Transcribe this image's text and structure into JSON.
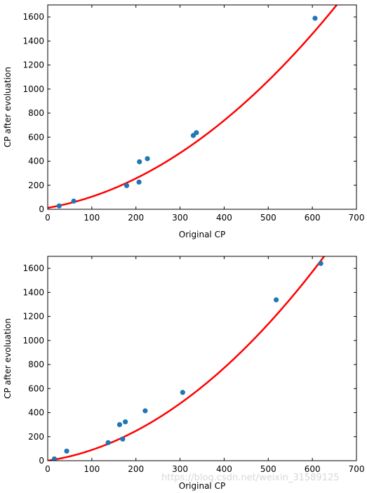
{
  "chart_data": [
    {
      "type": "scatter",
      "title": "",
      "xlabel": "Original CP",
      "ylabel": "CP after evoluation",
      "xlim": [
        0,
        700
      ],
      "ylim": [
        0,
        1700
      ],
      "xticks": [
        0,
        100,
        200,
        300,
        400,
        500,
        600,
        700
      ],
      "yticks": [
        0,
        200,
        400,
        600,
        800,
        1000,
        1200,
        1400,
        1600
      ],
      "grid": false,
      "series": [
        {
          "kind": "scatter",
          "color": "#1f77b4",
          "points": [
            {
              "x": 26,
              "y": 28
            },
            {
              "x": 59,
              "y": 68
            },
            {
              "x": 179,
              "y": 197
            },
            {
              "x": 207,
              "y": 226
            },
            {
              "x": 208,
              "y": 395
            },
            {
              "x": 226,
              "y": 421
            },
            {
              "x": 330,
              "y": 614
            },
            {
              "x": 337,
              "y": 637
            },
            {
              "x": 606,
              "y": 1589
            }
          ]
        },
        {
          "kind": "line",
          "color": "#ff0000",
          "fit_coefficients": [
            12,
            0.63,
            0.00297
          ]
        }
      ]
    },
    {
      "type": "scatter",
      "title": "",
      "xlabel": "Original CP",
      "ylabel": "CP after evoluation",
      "xlim": [
        0,
        700
      ],
      "ylim": [
        0,
        1700
      ],
      "xticks": [
        0,
        100,
        200,
        300,
        400,
        500,
        600,
        700
      ],
      "yticks": [
        0,
        200,
        400,
        600,
        800,
        1000,
        1200,
        1400,
        1600
      ],
      "grid": false,
      "series": [
        {
          "kind": "scatter",
          "color": "#1f77b4",
          "points": [
            {
              "x": 15,
              "y": 15
            },
            {
              "x": 43,
              "y": 80
            },
            {
              "x": 137,
              "y": 150
            },
            {
              "x": 163,
              "y": 300
            },
            {
              "x": 170,
              "y": 180
            },
            {
              "x": 176,
              "y": 323
            },
            {
              "x": 221,
              "y": 415
            },
            {
              "x": 306,
              "y": 568
            },
            {
              "x": 518,
              "y": 1338
            },
            {
              "x": 619,
              "y": 1641
            }
          ]
        },
        {
          "kind": "line",
          "color": "#ff0000",
          "fit_coefficients": [
            0,
            0.55,
            0.00345
          ]
        }
      ]
    }
  ],
  "watermark": "https://blog.csdn.net/weixin_31589125"
}
